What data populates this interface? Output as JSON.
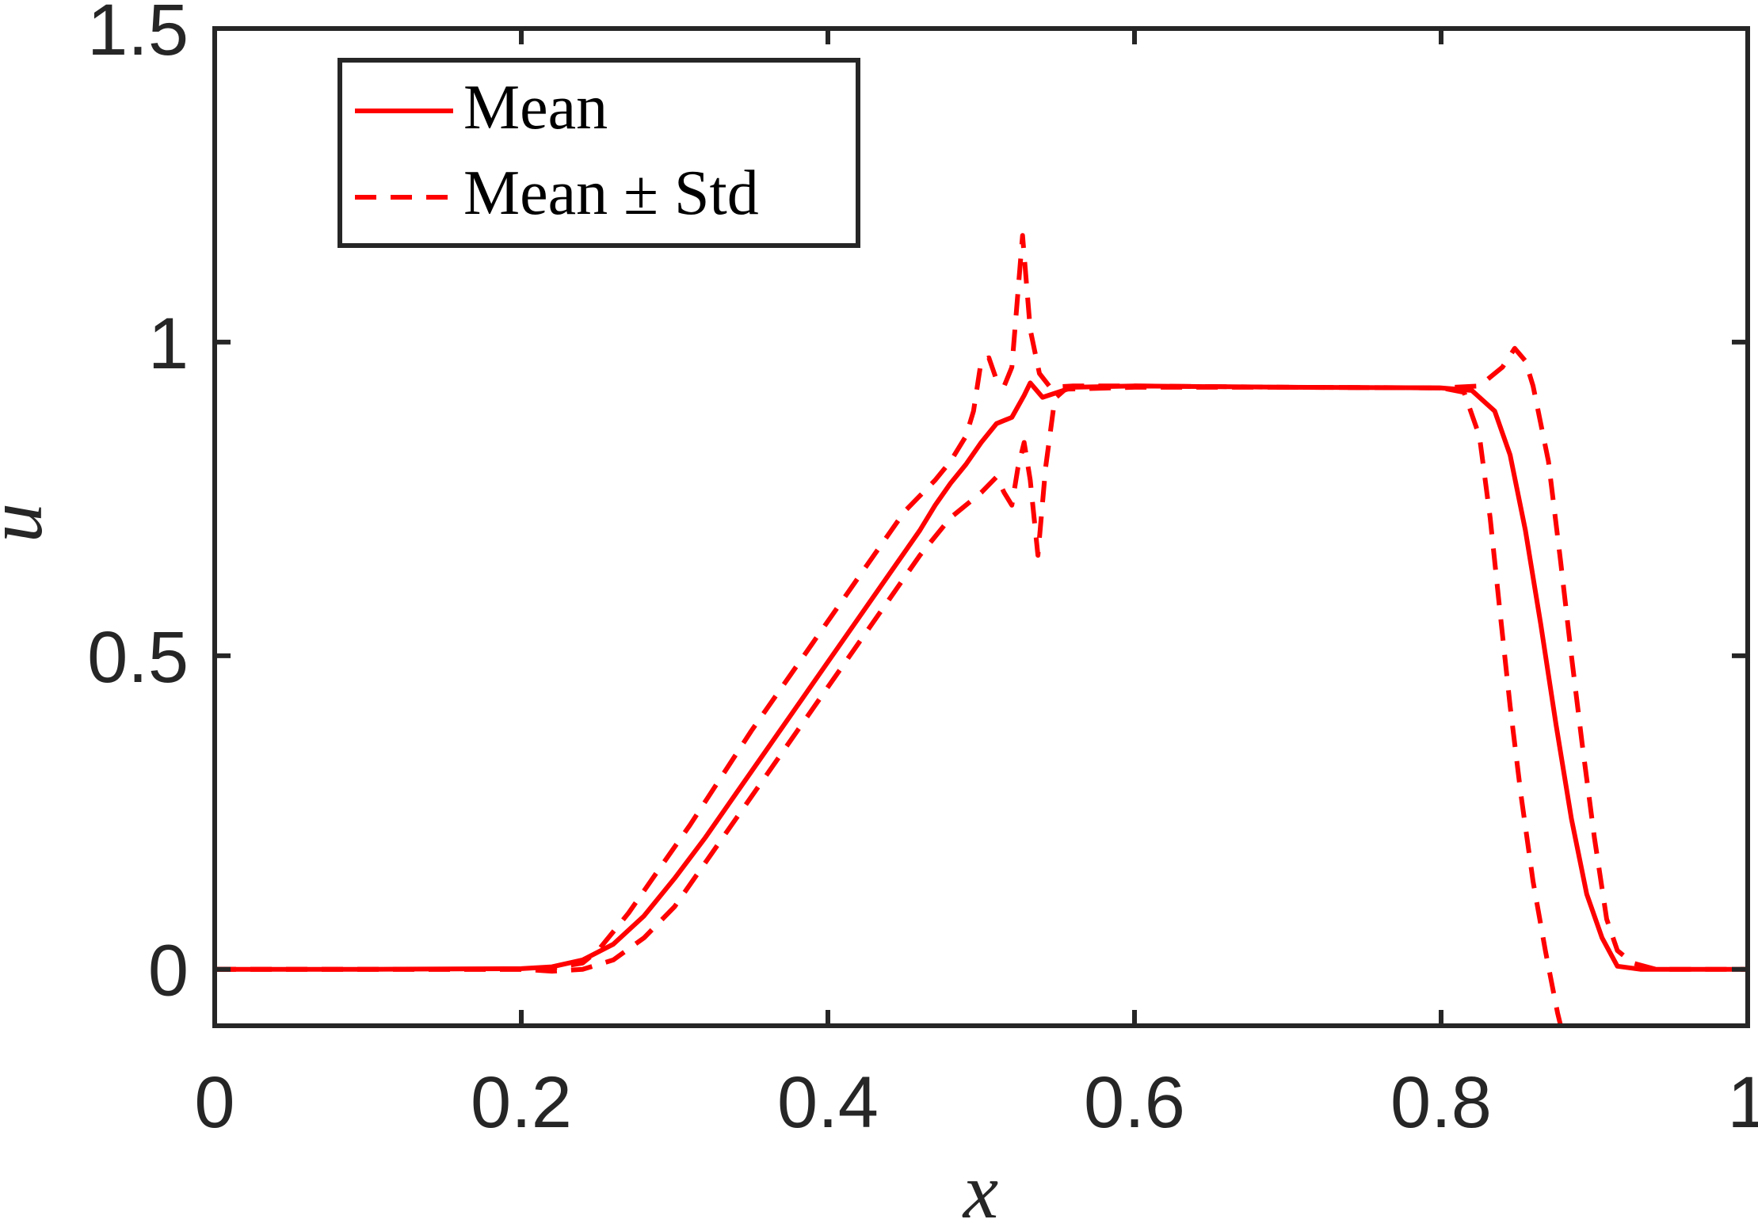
{
  "chart_data": {
    "type": "line",
    "title": "",
    "xlabel": "x",
    "ylabel": "u",
    "xlim": [
      0,
      1
    ],
    "ylim": [
      -0.09,
      1.5
    ],
    "grid": false,
    "legend_position": "top-left",
    "x_ticks": [
      {
        "value": 0,
        "label": "0"
      },
      {
        "value": 0.2,
        "label": "0.2"
      },
      {
        "value": 0.4,
        "label": "0.4"
      },
      {
        "value": 0.6,
        "label": "0.6"
      },
      {
        "value": 0.8,
        "label": "0.8"
      },
      {
        "value": 1,
        "label": "1"
      }
    ],
    "y_ticks": [
      {
        "value": 0,
        "label": "0"
      },
      {
        "value": 0.5,
        "label": "0.5"
      },
      {
        "value": 1,
        "label": "1"
      },
      {
        "value": 1.5,
        "label": "1.5"
      }
    ],
    "legend": [
      {
        "label": "Mean",
        "style": "solid"
      },
      {
        "label": "Mean ± Std",
        "style": "dashed"
      }
    ],
    "color": "#ff0000",
    "series": [
      {
        "name": "Mean",
        "style": "solid",
        "points": [
          [
            0,
            0
          ],
          [
            0.1,
            0
          ],
          [
            0.2,
            0.001
          ],
          [
            0.22,
            0.004
          ],
          [
            0.24,
            0.015
          ],
          [
            0.26,
            0.04
          ],
          [
            0.28,
            0.085
          ],
          [
            0.3,
            0.145
          ],
          [
            0.32,
            0.21
          ],
          [
            0.34,
            0.28
          ],
          [
            0.36,
            0.35
          ],
          [
            0.38,
            0.42
          ],
          [
            0.4,
            0.49
          ],
          [
            0.42,
            0.56
          ],
          [
            0.44,
            0.63
          ],
          [
            0.46,
            0.7
          ],
          [
            0.47,
            0.74
          ],
          [
            0.48,
            0.775
          ],
          [
            0.49,
            0.805
          ],
          [
            0.5,
            0.84
          ],
          [
            0.51,
            0.87
          ],
          [
            0.52,
            0.88
          ],
          [
            0.528,
            0.915
          ],
          [
            0.532,
            0.935
          ],
          [
            0.54,
            0.912
          ],
          [
            0.56,
            0.928
          ],
          [
            0.6,
            0.93
          ],
          [
            0.7,
            0.928
          ],
          [
            0.8,
            0.927
          ],
          [
            0.82,
            0.923
          ],
          [
            0.835,
            0.89
          ],
          [
            0.845,
            0.82
          ],
          [
            0.855,
            0.7
          ],
          [
            0.865,
            0.55
          ],
          [
            0.875,
            0.39
          ],
          [
            0.885,
            0.24
          ],
          [
            0.895,
            0.12
          ],
          [
            0.905,
            0.05
          ],
          [
            0.915,
            0.005
          ],
          [
            0.93,
            0
          ],
          [
            1,
            0
          ]
        ]
      },
      {
        "name": "Mean + Std",
        "style": "dashed",
        "points": [
          [
            0,
            0
          ],
          [
            0.1,
            0
          ],
          [
            0.2,
            0
          ],
          [
            0.22,
            0.002
          ],
          [
            0.24,
            0.01
          ],
          [
            0.25,
            0.03
          ],
          [
            0.27,
            0.09
          ],
          [
            0.29,
            0.16
          ],
          [
            0.31,
            0.23
          ],
          [
            0.33,
            0.305
          ],
          [
            0.35,
            0.38
          ],
          [
            0.37,
            0.45
          ],
          [
            0.39,
            0.52
          ],
          [
            0.41,
            0.59
          ],
          [
            0.43,
            0.66
          ],
          [
            0.45,
            0.73
          ],
          [
            0.47,
            0.78
          ],
          [
            0.48,
            0.81
          ],
          [
            0.49,
            0.85
          ],
          [
            0.495,
            0.89
          ],
          [
            0.5,
            0.97
          ],
          [
            0.505,
            0.975
          ],
          [
            0.51,
            0.94
          ],
          [
            0.515,
            0.93
          ],
          [
            0.52,
            0.96
          ],
          [
            0.527,
            1.17
          ],
          [
            0.532,
            1.02
          ],
          [
            0.538,
            0.95
          ],
          [
            0.545,
            0.928
          ],
          [
            0.56,
            0.93
          ],
          [
            0.6,
            0.93
          ],
          [
            0.7,
            0.928
          ],
          [
            0.8,
            0.927
          ],
          [
            0.825,
            0.93
          ],
          [
            0.84,
            0.96
          ],
          [
            0.848,
            0.99
          ],
          [
            0.855,
            0.97
          ],
          [
            0.86,
            0.93
          ],
          [
            0.87,
            0.81
          ],
          [
            0.878,
            0.65
          ],
          [
            0.885,
            0.5
          ],
          [
            0.892,
            0.36
          ],
          [
            0.9,
            0.21
          ],
          [
            0.908,
            0.08
          ],
          [
            0.915,
            0.03
          ],
          [
            0.925,
            0.01
          ],
          [
            0.94,
            0
          ],
          [
            1,
            0
          ]
        ]
      },
      {
        "name": "Mean - Std",
        "style": "dashed",
        "points": [
          [
            0,
            0
          ],
          [
            0.1,
            0
          ],
          [
            0.2,
            0
          ],
          [
            0.22,
            -0.003
          ],
          [
            0.24,
            0
          ],
          [
            0.26,
            0.015
          ],
          [
            0.28,
            0.05
          ],
          [
            0.3,
            0.1
          ],
          [
            0.32,
            0.17
          ],
          [
            0.34,
            0.24
          ],
          [
            0.36,
            0.31
          ],
          [
            0.38,
            0.38
          ],
          [
            0.4,
            0.45
          ],
          [
            0.42,
            0.52
          ],
          [
            0.44,
            0.59
          ],
          [
            0.46,
            0.66
          ],
          [
            0.48,
            0.72
          ],
          [
            0.5,
            0.76
          ],
          [
            0.51,
            0.785
          ],
          [
            0.515,
            0.76
          ],
          [
            0.52,
            0.74
          ],
          [
            0.524,
            0.8
          ],
          [
            0.528,
            0.84
          ],
          [
            0.532,
            0.78
          ],
          [
            0.537,
            0.66
          ],
          [
            0.542,
            0.8
          ],
          [
            0.548,
            0.91
          ],
          [
            0.555,
            0.925
          ],
          [
            0.6,
            0.928
          ],
          [
            0.7,
            0.928
          ],
          [
            0.8,
            0.927
          ],
          [
            0.815,
            0.92
          ],
          [
            0.825,
            0.85
          ],
          [
            0.832,
            0.72
          ],
          [
            0.838,
            0.58
          ],
          [
            0.845,
            0.42
          ],
          [
            0.852,
            0.28
          ],
          [
            0.86,
            0.14
          ],
          [
            0.868,
            0.03
          ],
          [
            0.872,
            -0.02
          ],
          [
            0.876,
            -0.07
          ],
          [
            0.879,
            -0.1
          ]
        ]
      }
    ]
  }
}
